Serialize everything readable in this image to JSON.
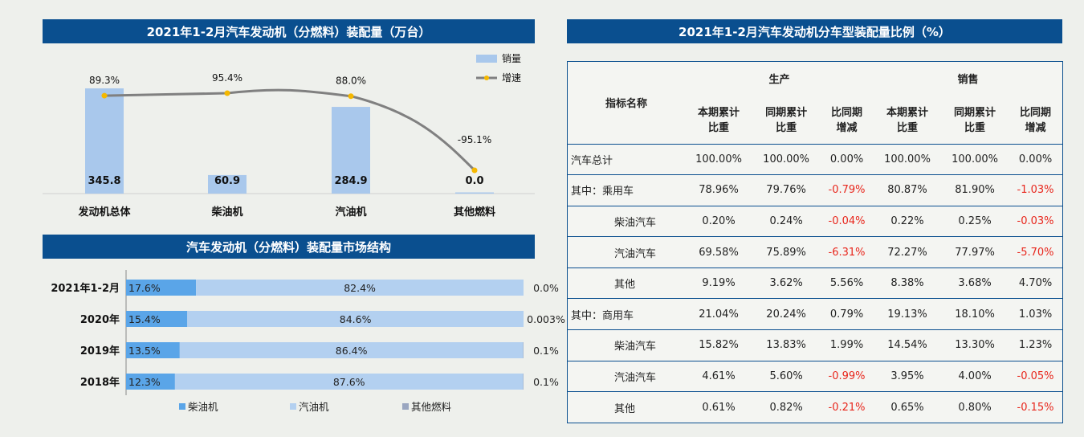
{
  "chart_data": [
    {
      "type": "bar",
      "title": "2021年1-2月汽车发动机（分燃料）装配量（万台）",
      "categories": [
        "发动机总体",
        "柴油机",
        "汽油机",
        "其他燃料"
      ],
      "series": [
        {
          "name": "销量",
          "values": [
            345.8,
            60.9,
            284.9,
            0.0
          ],
          "value_labels": [
            "345.8",
            "60.9",
            "284.9",
            "0.0"
          ]
        },
        {
          "name": "增速",
          "type": "line",
          "values": [
            89.3,
            95.4,
            88.0,
            -95.1
          ],
          "value_labels": [
            "89.3%",
            "95.4%",
            "88.0%",
            "-95.1%"
          ]
        }
      ],
      "legend": "top-right",
      "colors": {
        "bar": "#a9c8ec",
        "line": "#808080",
        "marker": "#f5b800"
      }
    },
    {
      "type": "bar",
      "stacked": "percent",
      "orientation": "horizontal",
      "title": "汽车发动机（分燃料）装配量市场结构",
      "categories": [
        "2021年1-2月",
        "2020年",
        "2019年",
        "2018年"
      ],
      "series": [
        {
          "name": "柴油机",
          "values": [
            17.6,
            15.4,
            13.5,
            12.3
          ],
          "value_labels": [
            "17.6%",
            "15.4%",
            "13.5%",
            "12.3%"
          ]
        },
        {
          "name": "汽油机",
          "values": [
            82.4,
            84.6,
            86.4,
            87.6
          ],
          "value_labels": [
            "82.4%",
            "84.6%",
            "86.4%",
            "87.6%"
          ]
        },
        {
          "name": "其他燃料",
          "values": [
            0.0,
            0.003,
            0.1,
            0.1
          ],
          "value_labels": [
            "0.0%",
            "0.003%",
            "0.1%",
            "0.1%"
          ]
        }
      ],
      "legend": "bottom",
      "colors": {
        "柴油机": "#5aa5e8",
        "汽油机": "#b3d0f0",
        "其他燃料": "#9aa6c0"
      }
    },
    {
      "type": "table",
      "title": "2021年1-2月汽车发动机分车型装配量比例（%）",
      "header": {
        "name": "指标名称",
        "groups": [
          "生产",
          "销售"
        ],
        "cols": [
          "本期累计比重",
          "同期累计比重",
          "比同期增减",
          "本期累计比重",
          "同期累计比重",
          "比同期增减"
        ],
        "col_lines": [
          [
            "本期累计",
            "比重"
          ],
          [
            "同期累计",
            "比重"
          ],
          [
            "比同期",
            "增减"
          ],
          [
            "本期累计",
            "比重"
          ],
          [
            "同期累计",
            "比重"
          ],
          [
            "比同期",
            "增减"
          ]
        ]
      },
      "rows": [
        {
          "name": "汽车总计",
          "indent": false,
          "cells": [
            "100.00%",
            "100.00%",
            "0.00%",
            "100.00%",
            "100.00%",
            "0.00%"
          ]
        },
        {
          "name": "其中：乘用车",
          "indent": false,
          "cells": [
            "78.96%",
            "79.76%",
            "-0.79%",
            "80.87%",
            "81.90%",
            "-1.03%"
          ]
        },
        {
          "name": "柴油汽车",
          "indent": true,
          "cells": [
            "0.20%",
            "0.24%",
            "-0.04%",
            "0.22%",
            "0.25%",
            "-0.03%"
          ]
        },
        {
          "name": "汽油汽车",
          "indent": true,
          "cells": [
            "69.58%",
            "75.89%",
            "-6.31%",
            "72.27%",
            "77.97%",
            "-5.70%"
          ]
        },
        {
          "name": "其他",
          "indent": true,
          "cells": [
            "9.19%",
            "3.62%",
            "5.56%",
            "8.38%",
            "3.68%",
            "4.70%"
          ]
        },
        {
          "name": "其中：商用车",
          "indent": false,
          "cells": [
            "21.04%",
            "20.24%",
            "0.79%",
            "19.13%",
            "18.10%",
            "1.03%"
          ]
        },
        {
          "name": "柴油汽车",
          "indent": true,
          "cells": [
            "15.82%",
            "13.83%",
            "1.99%",
            "14.54%",
            "13.30%",
            "1.23%"
          ]
        },
        {
          "name": "汽油汽车",
          "indent": true,
          "cells": [
            "4.61%",
            "5.60%",
            "-0.99%",
            "3.95%",
            "4.00%",
            "-0.05%"
          ]
        },
        {
          "name": "其他",
          "indent": true,
          "cells": [
            "0.61%",
            "0.82%",
            "-0.21%",
            "0.65%",
            "0.80%",
            "-0.15%"
          ]
        }
      ],
      "negative_color": "#e8261c"
    }
  ]
}
